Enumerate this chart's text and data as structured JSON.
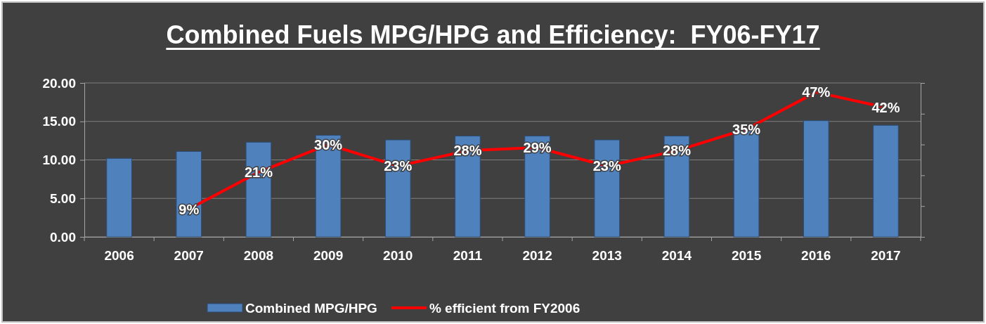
{
  "chart_data": {
    "type": "bar",
    "title": "Combined Fuels MPG/HPG and Efficiency:  FY06-FY17",
    "categories": [
      "2006",
      "2007",
      "2008",
      "2009",
      "2010",
      "2011",
      "2012",
      "2013",
      "2014",
      "2015",
      "2016",
      "2017"
    ],
    "series": [
      {
        "name": "Combined MPG/HPG",
        "color": "#4f81bd",
        "values": [
          10.2,
          11.1,
          12.3,
          13.2,
          12.6,
          13.1,
          13.1,
          12.6,
          13.1,
          14.0,
          15.1,
          14.5
        ]
      },
      {
        "name": "% efficient from FY2006",
        "type": "line",
        "axis": "y2",
        "color": "#ff0000",
        "values": [
          null,
          9,
          21,
          30,
          23,
          28,
          29,
          23,
          28,
          35,
          47,
          42
        ],
        "value_labels": [
          null,
          "9%",
          "21%",
          "30%",
          "23%",
          "28%",
          "29%",
          "23%",
          "28%",
          "35%",
          "47%",
          "42%"
        ]
      }
    ],
    "ylim": [
      0,
      20
    ],
    "yticks": [
      {
        "value": 0,
        "label": "0.00"
      },
      {
        "value": 5,
        "label": "5.00"
      },
      {
        "value": 10,
        "label": "10.00"
      },
      {
        "value": 15,
        "label": "15.00"
      },
      {
        "value": 20,
        "label": "20.00"
      }
    ],
    "y2lim": [
      0,
      50
    ],
    "y2ticks": [
      {
        "value": 0,
        "label": null
      },
      {
        "value": 10,
        "label": null
      },
      {
        "value": 20,
        "label": null
      },
      {
        "value": 30,
        "label": null
      },
      {
        "value": 40,
        "label": null
      },
      {
        "value": 50,
        "label": null
      }
    ],
    "grid": "y",
    "legend": "bottom",
    "marker": "none"
  }
}
